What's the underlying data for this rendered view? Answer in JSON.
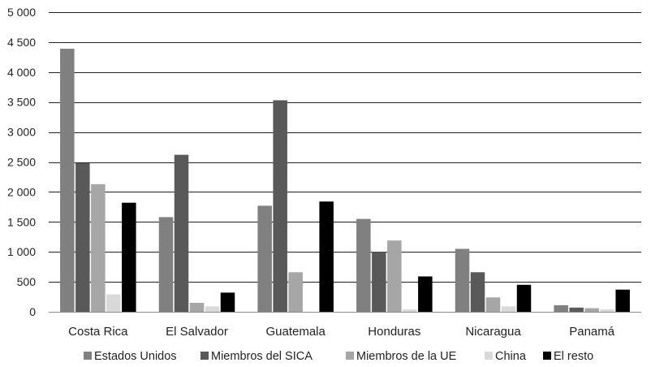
{
  "chart_data": {
    "type": "bar",
    "title": "",
    "xlabel": "",
    "ylabel": "",
    "ylim": [
      0,
      5000
    ],
    "yticks": [
      0,
      500,
      1000,
      1500,
      2000,
      2500,
      3000,
      3500,
      4000,
      4500,
      5000
    ],
    "ytick_labels": [
      "0",
      "500",
      "1 000",
      "1 500",
      "2 000",
      "2 500",
      "3 000",
      "3 500",
      "4 000",
      "4 500",
      "5 000"
    ],
    "grid": true,
    "legend_position": "bottom",
    "categories": [
      "Costa Rica",
      "El Salvador",
      "Guatemala",
      "Honduras",
      "Nicaragua",
      "Panamá"
    ],
    "series": [
      {
        "name": "Estados Unidos",
        "color": "#808080",
        "values": [
          4390,
          1580,
          1770,
          1550,
          1050,
          110
        ]
      },
      {
        "name": "Miembros del SICA",
        "color": "#595959",
        "values": [
          2480,
          2620,
          3530,
          1000,
          660,
          70
        ]
      },
      {
        "name": "Miembros de la UE",
        "color": "#a6a6a6",
        "values": [
          2130,
          150,
          660,
          1190,
          240,
          60
        ]
      },
      {
        "name": "China",
        "color": "#d9d9d9",
        "values": [
          290,
          90,
          0,
          40,
          90,
          40
        ]
      },
      {
        "name": "El resto",
        "color": "#000000",
        "values": [
          1820,
          320,
          1840,
          590,
          450,
          370
        ]
      }
    ]
  }
}
